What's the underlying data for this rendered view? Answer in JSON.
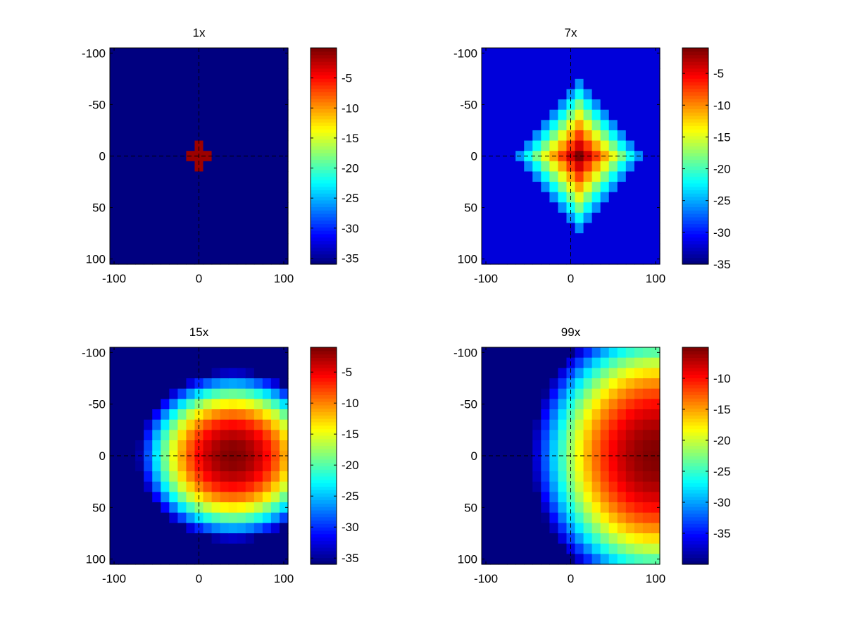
{
  "figure": {
    "background": "#ffffff",
    "colormap": "jet"
  },
  "chart_data": [
    {
      "type": "heatmap",
      "title": "1x",
      "pattern": "cross",
      "xlim": [
        -105,
        105
      ],
      "ylim_reversed": [
        -105,
        105
      ],
      "x_ticks": [
        -100,
        0,
        100
      ],
      "x_tick_labels": [
        "-100",
        "0",
        "100"
      ],
      "y_ticks": [
        -100,
        -50,
        0,
        50,
        100
      ],
      "y_tick_labels": [
        "-100",
        "-50",
        "0",
        "50",
        "100"
      ],
      "grid_cells": 21,
      "guide_lines": {
        "x": 0,
        "y": 0,
        "style": "dashed",
        "color": "#000000"
      },
      "colorbar": {
        "range": [
          -36,
          0
        ],
        "ticks": [
          -5,
          -10,
          -15,
          -20,
          -25,
          -30,
          -35
        ],
        "tick_labels": [
          "-5",
          "-10",
          "-15",
          "-20",
          "-25",
          "-30",
          "-35"
        ]
      },
      "field": {
        "peak": -1,
        "floor": -36,
        "center": [
          0,
          0
        ],
        "cross_half_width": 1.5
      }
    },
    {
      "type": "heatmap",
      "title": "7x",
      "pattern": "diamond",
      "xlim": [
        -105,
        105
      ],
      "ylim_reversed": [
        -105,
        105
      ],
      "x_ticks": [
        -100,
        0,
        100
      ],
      "x_tick_labels": [
        "-100",
        "0",
        "100"
      ],
      "y_ticks": [
        -100,
        -50,
        0,
        50,
        100
      ],
      "y_tick_labels": [
        "-100",
        "-50",
        "0",
        "50",
        "100"
      ],
      "grid_cells": 21,
      "guide_lines": {
        "x": 0,
        "y": 0,
        "style": "dashed",
        "color": "#000000"
      },
      "colorbar": {
        "range": [
          -35,
          -1
        ],
        "ticks": [
          -5,
          -10,
          -15,
          -20,
          -25,
          -30,
          -35
        ],
        "tick_labels": [
          "-5",
          "-10",
          "-15",
          "-20",
          "-25",
          "-30",
          "-35"
        ]
      },
      "field": {
        "peak": -1,
        "floor": -35,
        "background": -32,
        "center": [
          10,
          0
        ],
        "radius": 70,
        "edge_value": -26
      }
    },
    {
      "type": "heatmap",
      "title": "15x",
      "pattern": "ellipse",
      "xlim": [
        -105,
        105
      ],
      "ylim_reversed": [
        -105,
        105
      ],
      "x_ticks": [
        -100,
        0,
        100
      ],
      "x_tick_labels": [
        "-100",
        "0",
        "100"
      ],
      "y_ticks": [
        -100,
        -50,
        0,
        50,
        100
      ],
      "y_tick_labels": [
        "-100",
        "-50",
        "0",
        "50",
        "100"
      ],
      "grid_cells": 21,
      "guide_lines": {
        "x": 0,
        "y": 0,
        "style": "dashed",
        "color": "#000000"
      },
      "colorbar": {
        "range": [
          -36,
          -1
        ],
        "ticks": [
          -5,
          -10,
          -15,
          -20,
          -25,
          -30,
          -35
        ],
        "tick_labels": [
          "-5",
          "-10",
          "-15",
          "-20",
          "-25",
          "-30",
          "-35"
        ]
      },
      "field": {
        "peak": -1,
        "floor": -36,
        "background": -32,
        "center": [
          40,
          0
        ],
        "semi_x": 115,
        "semi_y": 85
      }
    },
    {
      "type": "heatmap",
      "title": "99x",
      "pattern": "wide",
      "xlim": [
        -105,
        105
      ],
      "ylim_reversed": [
        -105,
        105
      ],
      "x_ticks": [
        -100,
        0,
        100
      ],
      "x_tick_labels": [
        "-100",
        "0",
        "100"
      ],
      "y_ticks": [
        -100,
        -50,
        0,
        50,
        100
      ],
      "y_tick_labels": [
        "-100",
        "-50",
        "0",
        "50",
        "100"
      ],
      "grid_cells": 21,
      "guide_lines": {
        "x": 0,
        "y": 0,
        "style": "dashed",
        "color": "#000000"
      },
      "colorbar": {
        "range": [
          -40,
          -5
        ],
        "ticks": [
          -10,
          -15,
          -20,
          -25,
          -30,
          -35
        ],
        "tick_labels": [
          "-10",
          "-15",
          "-20",
          "-25",
          "-30",
          "-35"
        ]
      },
      "field": {
        "peak": -5,
        "floor": -40,
        "center": [
          100,
          0
        ],
        "semi_x": 150,
        "semi_y": 140
      }
    }
  ]
}
